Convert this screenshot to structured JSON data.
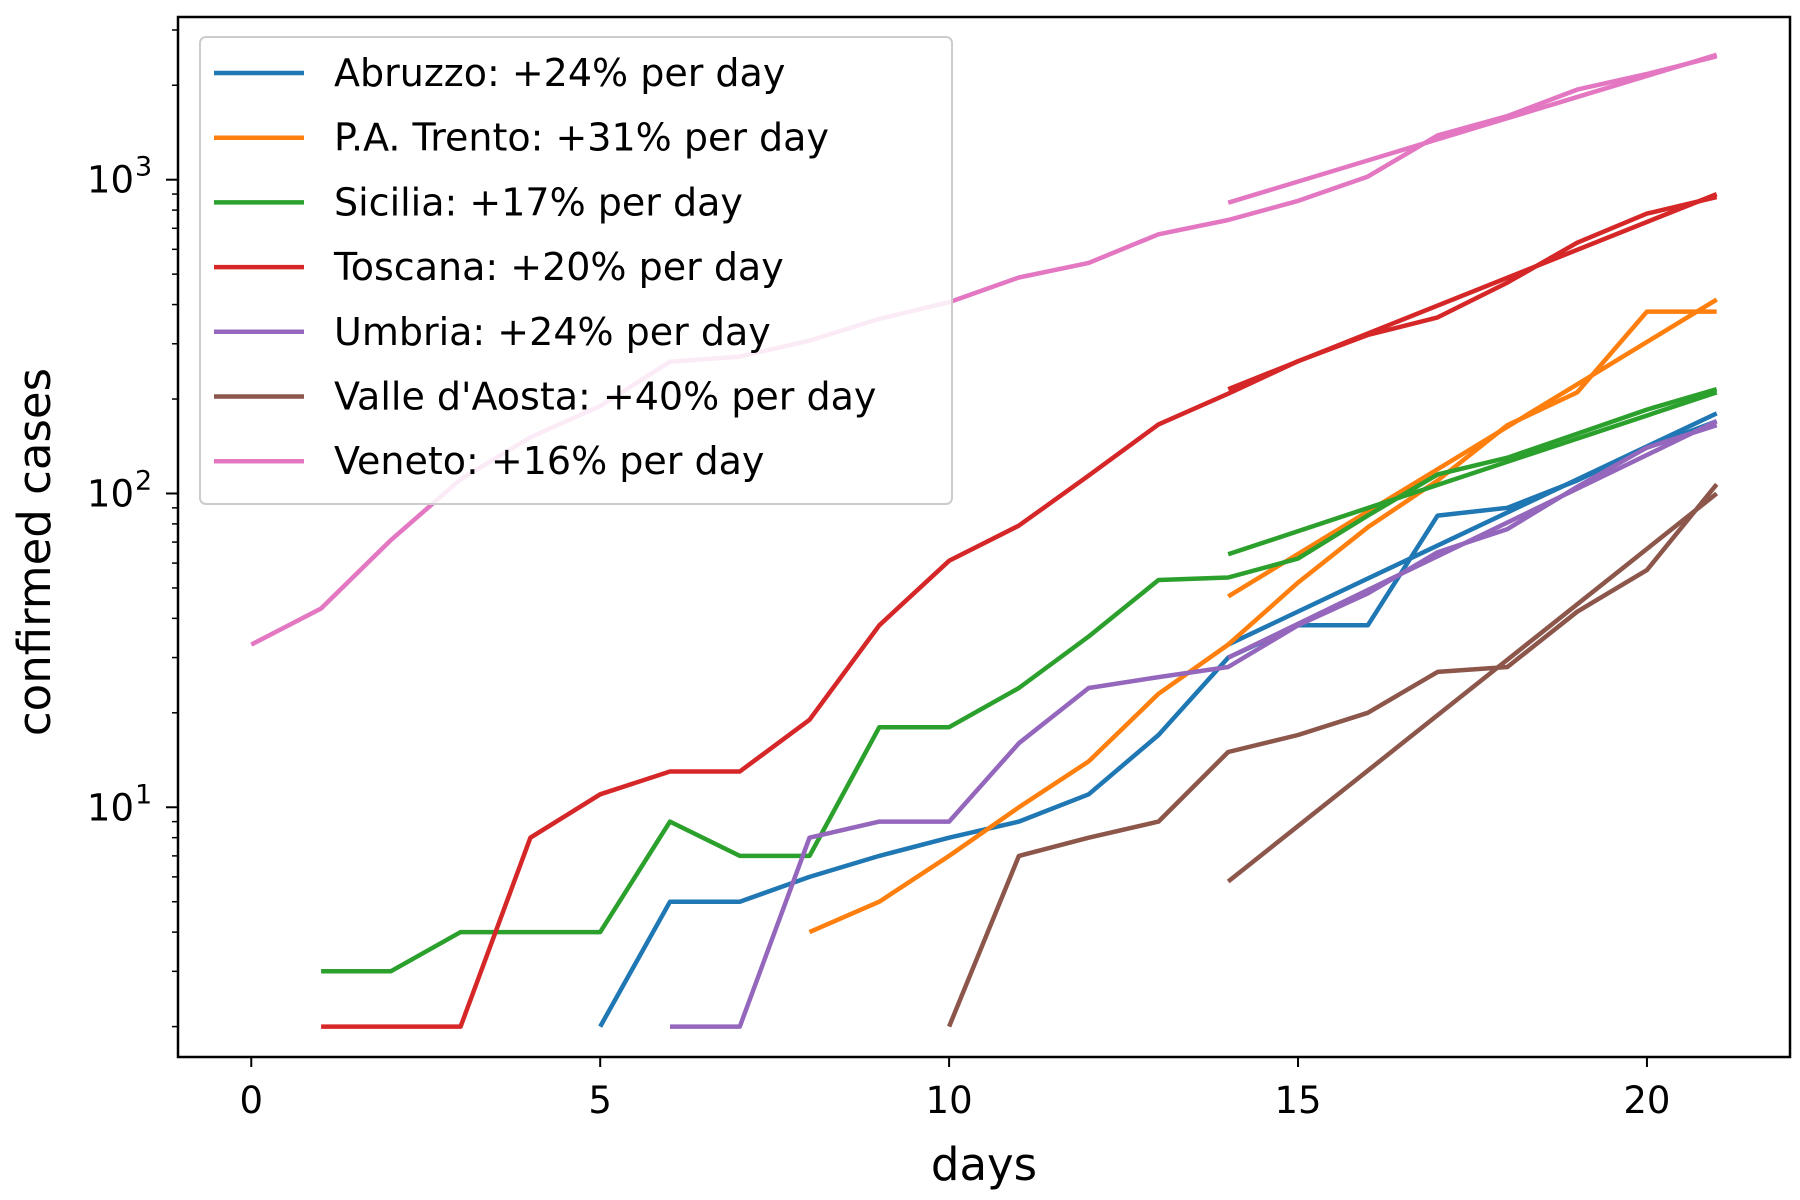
{
  "chart_data": {
    "type": "line",
    "xlabel": "days",
    "ylabel": "confirmed cases",
    "xlim": [
      -1.05,
      22.05
    ],
    "ylim": [
      1.6,
      3300
    ],
    "yscale": "log",
    "x_ticks": [
      0,
      5,
      10,
      15,
      20
    ],
    "y_ticks": [
      {
        "value": 10,
        "base": "10",
        "exp": "1"
      },
      {
        "value": 100,
        "base": "10",
        "exp": "2"
      },
      {
        "value": 1000,
        "base": "10",
        "exp": "3"
      }
    ],
    "grid": false,
    "legend_position": "top-left",
    "series": [
      {
        "name": "Abruzzo: +24% per day",
        "color": "#1f77b4",
        "x": [
          5,
          6,
          7,
          8,
          9,
          10,
          11,
          12,
          13,
          14,
          15,
          16,
          17,
          18,
          19,
          20,
          21
        ],
        "y": [
          2,
          5,
          5,
          6,
          7,
          8,
          9,
          11,
          17,
          30,
          38,
          38,
          85,
          90,
          110,
          140,
          170
        ],
        "fit": {
          "x": [
            14,
            21
          ],
          "y": [
            33,
            180
          ]
        }
      },
      {
        "name": "P.A. Trento: +31% per day",
        "color": "#ff7f0e",
        "x": [
          8,
          9,
          10,
          11,
          12,
          13,
          14,
          15,
          16,
          17,
          18,
          19,
          20,
          21
        ],
        "y": [
          4,
          5,
          7,
          10,
          14,
          23,
          33,
          52,
          78,
          110,
          165,
          210,
          380,
          380
        ],
        "fit": {
          "x": [
            14,
            21
          ],
          "y": [
            47,
            415
          ]
        }
      },
      {
        "name": "Sicilia: +17% per day",
        "color": "#2ca02c",
        "x": [
          1,
          2,
          3,
          4,
          5,
          6,
          7,
          8,
          9,
          10,
          11,
          12,
          13,
          14,
          15,
          16,
          17,
          18,
          19,
          20,
          21
        ],
        "y": [
          3,
          3,
          4,
          4,
          4,
          9,
          7,
          7,
          18,
          18,
          24,
          35,
          53,
          54,
          62,
          85,
          115,
          130,
          155,
          185,
          215
        ],
        "fit": {
          "x": [
            14,
            21
          ],
          "y": [
            64,
            210
          ]
        }
      },
      {
        "name": "Toscana: +20% per day",
        "color": "#d62728",
        "x": [
          1,
          2,
          3,
          4,
          5,
          6,
          7,
          8,
          9,
          10,
          11,
          12,
          13,
          14,
          15,
          16,
          17,
          18,
          19,
          20,
          21
        ],
        "y": [
          2,
          2,
          2,
          8,
          11,
          13,
          13,
          19,
          38,
          61,
          79,
          114,
          166,
          208,
          264,
          320,
          364,
          470,
          630,
          780,
          880
        ],
        "fit": {
          "x": [
            14,
            21
          ],
          "y": [
            215,
            900
          ]
        }
      },
      {
        "name": "Umbria: +24% per day",
        "color": "#9467bd",
        "x": [
          6,
          7,
          8,
          9,
          10,
          11,
          12,
          13,
          14,
          15,
          16,
          17,
          18,
          19,
          20,
          21
        ],
        "y": [
          2,
          2,
          8,
          9,
          9,
          16,
          24,
          26,
          28,
          38,
          48,
          65,
          77,
          105,
          140,
          165
        ],
        "fit": {
          "x": [
            14,
            21
          ],
          "y": [
            30,
            170
          ]
        }
      },
      {
        "name": "Valle d'Aosta: +40% per day",
        "color": "#8c564b",
        "x": [
          10,
          11,
          12,
          13,
          14,
          15,
          16,
          17,
          18,
          19,
          20,
          21
        ],
        "y": [
          2,
          7,
          8,
          9,
          15,
          17,
          20,
          27,
          28,
          42,
          57,
          107
        ],
        "fit": {
          "x": [
            14,
            21
          ],
          "y": [
            5.8,
            100
          ]
        }
      },
      {
        "name": "Veneto: +16% per day",
        "color": "#e377c2",
        "x": [
          0,
          1,
          2,
          3,
          4,
          5,
          6,
          7,
          8,
          9,
          10,
          11,
          12,
          13,
          14,
          15,
          16,
          17,
          18,
          19,
          20,
          21
        ],
        "y": [
          33,
          43,
          71,
          111,
          151,
          190,
          263,
          273,
          307,
          360,
          407,
          488,
          543,
          670,
          744,
          856,
          1023,
          1384,
          1595,
          1937,
          2172,
          2473
        ],
        "fit": {
          "x": [
            14,
            21
          ],
          "y": [
            845,
            2500
          ]
        }
      }
    ]
  }
}
